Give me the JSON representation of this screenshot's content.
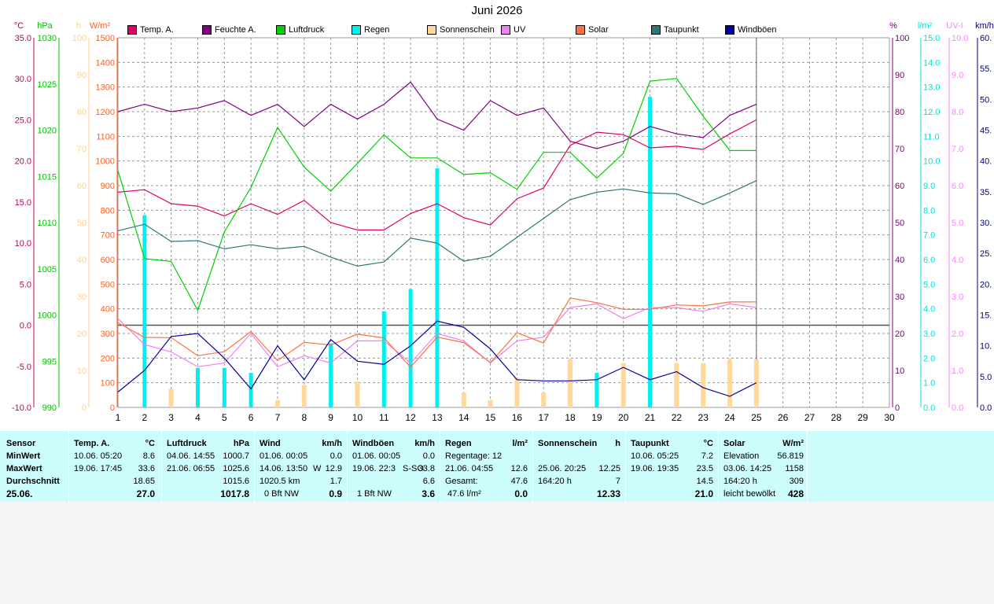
{
  "chart_data": {
    "type": "line",
    "title": "Juni 2026",
    "x": [
      1,
      2,
      3,
      4,
      5,
      6,
      7,
      8,
      9,
      10,
      11,
      12,
      13,
      14,
      15,
      16,
      17,
      18,
      19,
      20,
      21,
      22,
      23,
      24,
      25
    ],
    "x_ticks": [
      "1",
      "2",
      "3",
      "4",
      "5",
      "6",
      "7",
      "8",
      "9",
      "10",
      "11",
      "12",
      "13",
      "14",
      "15",
      "16",
      "17",
      "18",
      "19",
      "20",
      "21",
      "22",
      "23",
      "24",
      "25",
      "26",
      "27",
      "28",
      "29",
      "30"
    ],
    "grid": true,
    "left_axes": [
      {
        "unit": "°C",
        "color": "#c00060",
        "min": -10,
        "max": 35,
        "ticks": [
          "35.0",
          "30.0",
          "25.0",
          "20.0",
          "15.0",
          "10.0",
          "5.0",
          "0.0",
          "-5.0",
          "-10.0"
        ]
      },
      {
        "unit": "hPa",
        "color": "#00c000",
        "min": 990,
        "max": 1030,
        "ticks": [
          "1030",
          "1025",
          "1020",
          "1015",
          "1010",
          "1005",
          "1000",
          "995",
          "990"
        ]
      },
      {
        "unit": "h",
        "color": "#ffd090",
        "min": 0,
        "max": 100,
        "ticks": [
          "100",
          "90",
          "80",
          "70",
          "60",
          "50",
          "40",
          "30",
          "20",
          "10",
          "0"
        ]
      },
      {
        "unit": "W/m²",
        "color": "#ff6020",
        "min": 0,
        "max": 1500,
        "ticks": [
          "1500",
          "1400",
          "1300",
          "1200",
          "1100",
          "1000",
          "900",
          "800",
          "700",
          "600",
          "500",
          "400",
          "300",
          "200",
          "100",
          "0"
        ]
      }
    ],
    "right_axes": [
      {
        "unit": "%",
        "color": "#800080",
        "min": 0,
        "max": 100,
        "ticks": [
          "100",
          "90",
          "80",
          "70",
          "60",
          "50",
          "40",
          "30",
          "20",
          "10",
          "0"
        ]
      },
      {
        "unit": "l/m²",
        "color": "#00e0e0",
        "min": 0,
        "max": 15,
        "ticks": [
          "15.0",
          "14.0",
          "13.0",
          "12.0",
          "11.0",
          "10.0",
          "9.0",
          "8.0",
          "7.0",
          "6.0",
          "5.0",
          "4.0",
          "3.0",
          "2.0",
          "1.0",
          "0.0"
        ]
      },
      {
        "unit": "UV-I",
        "color": "#ff80ff",
        "min": 0,
        "max": 10,
        "ticks": [
          "10.0",
          "9.0",
          "8.0",
          "7.0",
          "6.0",
          "5.0",
          "4.0",
          "3.0",
          "2.0",
          "1.0",
          "0.0"
        ]
      },
      {
        "unit": "km/h",
        "color": "#000080",
        "min": 0,
        "max": 60,
        "ticks": [
          "60.",
          "55.",
          "50.",
          "45.",
          "40.",
          "35.",
          "30.",
          "25.",
          "20.",
          "15.",
          "10.",
          "5.0",
          "0.0"
        ]
      }
    ],
    "series": [
      {
        "name": "Temp. A.",
        "color": "#e0006a",
        "kind": "line",
        "axis": "temp",
        "values": [
          16.2,
          16.5,
          14.8,
          14.5,
          13.3,
          14.8,
          13.5,
          15.2,
          12.5,
          11.6,
          11.6,
          13.6,
          14.8,
          13.1,
          12.2,
          15.4,
          16.7,
          21.9,
          23.5,
          23.2,
          21.6,
          21.8,
          21.4,
          23.3,
          25.0
        ]
      },
      {
        "name": "Feuchte A.",
        "color": "#800080",
        "kind": "line",
        "axis": "hum",
        "values": [
          80,
          82,
          80,
          81,
          83,
          79,
          82,
          76,
          82,
          78,
          82,
          88,
          78,
          75,
          83,
          79,
          81,
          72,
          70,
          72,
          76,
          74,
          73,
          79,
          82
        ]
      },
      {
        "name": "Luftdruck",
        "color": "#00d000",
        "kind": "line",
        "axis": "press",
        "values": [
          1015.6,
          1006.1,
          1005.8,
          1000.5,
          1009.0,
          1013.8,
          1020.3,
          1016.0,
          1013.4,
          1016.4,
          1019.5,
          1017.0,
          1017.0,
          1015.2,
          1015.4,
          1013.6,
          1017.6,
          1017.6,
          1014.8,
          1017.5,
          1025.3,
          1025.6,
          1021.5,
          1017.8,
          1017.8
        ]
      },
      {
        "name": "Regen",
        "color": "#00f0f0",
        "kind": "bar",
        "axis": "rain",
        "values": [
          0,
          7.8,
          0,
          1.6,
          1.6,
          1.4,
          0,
          0,
          2.6,
          0,
          3.9,
          4.8,
          9.7,
          0.2,
          0.2,
          0,
          0,
          0,
          1.4,
          0,
          12.6,
          0,
          0,
          0,
          0
        ]
      },
      {
        "name": "Sonnenschein",
        "color": "#ffd89a",
        "kind": "bar",
        "axis": "sun",
        "values": [
          0,
          0,
          5,
          0,
          0,
          0,
          2,
          6,
          0,
          7,
          0,
          0,
          0,
          4,
          2,
          8,
          4,
          13,
          0,
          12,
          0,
          12,
          12,
          13,
          13
        ]
      },
      {
        "name": "UV",
        "color": "#f080f0",
        "kind": "line",
        "axis": "uv",
        "values": [
          2.4,
          1.7,
          1.5,
          1.1,
          1.2,
          2.0,
          1.1,
          1.4,
          1.2,
          1.8,
          1.8,
          1.2,
          2.0,
          1.8,
          1.2,
          1.8,
          1.9,
          2.7,
          2.8,
          2.4,
          2.7,
          2.7,
          2.6,
          2.8,
          2.7
        ]
      },
      {
        "name": "Solar",
        "color": "#ff7040",
        "kind": "line",
        "axis": "solar",
        "values": [
          343,
          284,
          283,
          210,
          226,
          308,
          190,
          264,
          253,
          297,
          282,
          163,
          285,
          263,
          182,
          303,
          261,
          444,
          425,
          398,
          398,
          416,
          412,
          428,
          428
        ]
      },
      {
        "name": "Taupunkt",
        "color": "#307878",
        "kind": "line",
        "axis": "temp",
        "values": [
          11.5,
          12.3,
          10.2,
          10.3,
          9.3,
          9.8,
          9.3,
          9.6,
          8.3,
          7.2,
          7.7,
          10.6,
          10.0,
          7.8,
          8.4,
          10.7,
          13.0,
          15.3,
          16.2,
          16.6,
          16.1,
          16.0,
          14.7,
          16.1,
          17.6
        ]
      },
      {
        "name": "Windböen",
        "color": "#0000a0",
        "kind": "line",
        "axis": "wind",
        "values": [
          2.5,
          6.0,
          11.5,
          12.0,
          8.0,
          3.0,
          10.0,
          4.5,
          11.0,
          7.5,
          7.0,
          10.0,
          14.0,
          13.0,
          9.5,
          4.5,
          4.3,
          4.3,
          4.5,
          6.5,
          4.5,
          5.8,
          3.2,
          1.8,
          4.0
        ]
      }
    ]
  },
  "stats": {
    "row_labels": [
      "Sensor",
      "MinWert",
      "MaxWert",
      "Durchschnitt",
      "25.06."
    ],
    "temp": {
      "header": "Temp. A.",
      "unit": "°C",
      "min_time": "10.06.  05:20",
      "min": "8.6",
      "max_time": "19.06.  17:45",
      "max": "33.6",
      "avg": "18.65",
      "today": "27.0"
    },
    "press": {
      "header": "Luftdruck",
      "unit": "hPa",
      "min_time": "04.06.  14:55",
      "min": "1000.7",
      "max_time": "21.06.  06:55",
      "max": "1025.6",
      "avg": "1015.6",
      "today": "1017.8"
    },
    "wind": {
      "header": "Wind",
      "unit": "km/h",
      "min_time": "01.06.  00:05",
      "min": "0.0",
      "max_time": "14.06.  13:50",
      "max_dir": "W",
      "max": "12.9",
      "avg_label": "1020.5 km",
      "avg": "1.7",
      "today_label": "0 Bft NW",
      "today": "0.9"
    },
    "gust": {
      "header": "Windböen",
      "unit": "km/h",
      "min_time": "01.06.  00:05",
      "min": "0.0",
      "max_time": "19.06.  22:3",
      "max_dir": "S-SO",
      "max": "33.8",
      "avg": "6.6",
      "today_label": "1 Bft NW",
      "today": "3.6"
    },
    "rain": {
      "header": "Regen",
      "unit": "l/m²",
      "min_label": "Regentage: 12",
      "max_time": "21.06.  04:55",
      "max": "12.6",
      "avg_label": "Gesamt:",
      "avg": "47.6",
      "today_label": "47.6 l/m²",
      "today": "0.0"
    },
    "sun": {
      "header": "Sonnenschein",
      "unit": "h",
      "max_time": "25.06.  20:25",
      "max": "12.25",
      "avg_label": "164:20 h",
      "avg": "7",
      "today": "12.33"
    },
    "dew": {
      "header": "Taupunkt",
      "unit": "°C",
      "min_time": "10.06.  05:25",
      "min": "7.2",
      "max_time": "19.06.  19:35",
      "max": "23.5",
      "avg": "14.5",
      "today": "21.0"
    },
    "solar": {
      "header": "Solar",
      "unit": "W/m²",
      "min_label": "Elevation",
      "min": "56.819",
      "max_time": "03.06.  14:25",
      "max": "1158",
      "avg_label": "164:20 h",
      "avg": "309",
      "today_label": "leicht bewölkt",
      "today": "428"
    }
  }
}
